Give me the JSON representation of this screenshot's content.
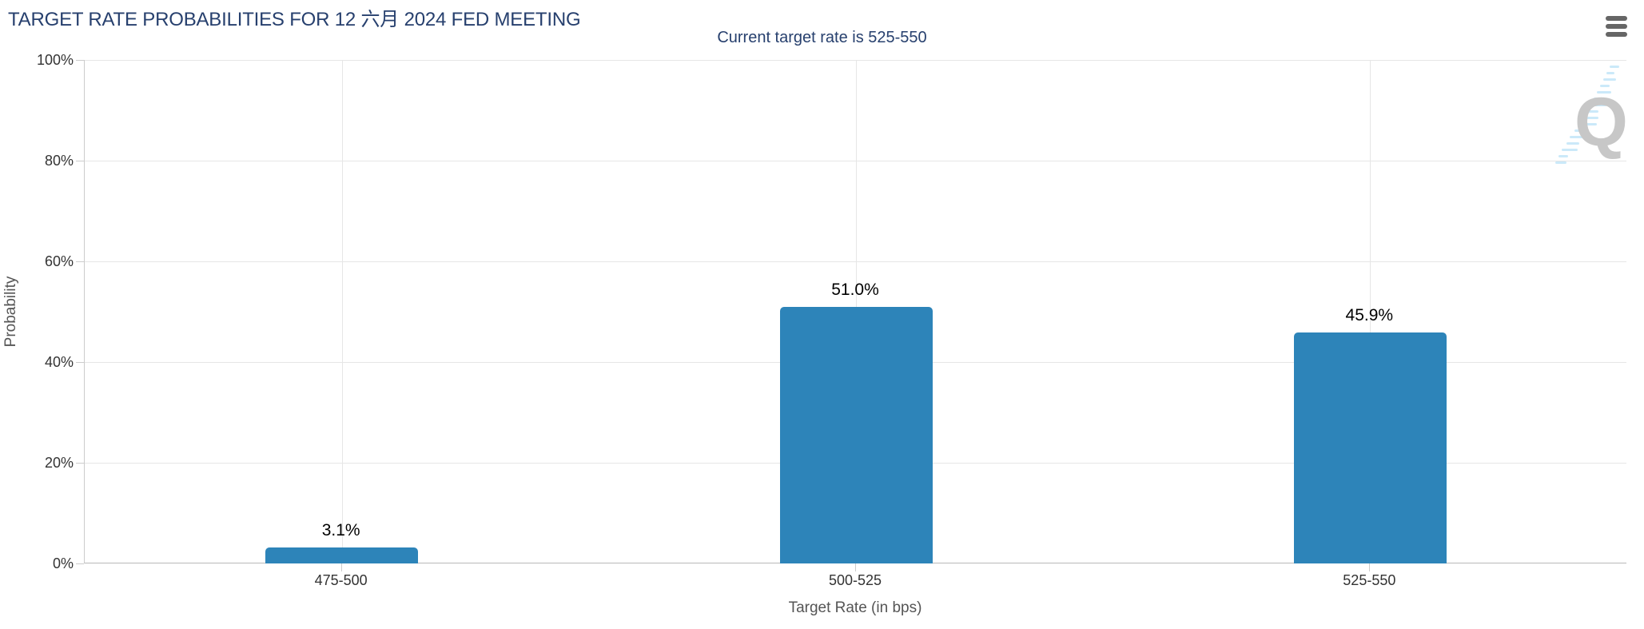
{
  "header": {
    "menu_tooltip": "Chart context menu"
  },
  "watermark": {
    "letter": "Q"
  },
  "chart_data": {
    "type": "bar",
    "title": "TARGET RATE PROBABILITIES FOR 12 六月 2024 FED MEETING",
    "subtitle": "Current target rate is 525-550",
    "categories": [
      "475-500",
      "500-525",
      "525-550"
    ],
    "values": [
      3.1,
      51.0,
      45.9
    ],
    "data_labels": [
      "3.1%",
      "51.0%",
      "45.9%"
    ],
    "xlabel": "Target Rate (in bps)",
    "ylabel": "Probability",
    "ylim": [
      0,
      100
    ],
    "ytick_step": 20,
    "ytick_labels": [
      "0%",
      "20%",
      "40%",
      "60%",
      "80%",
      "100%"
    ],
    "grid": true,
    "legend": "none",
    "bar_color": "#2d84b9",
    "title_color": "#27406e",
    "axis_label_color": "#333333",
    "axis_title_color": "#555555",
    "gridline_color": "#e6e6e6"
  }
}
